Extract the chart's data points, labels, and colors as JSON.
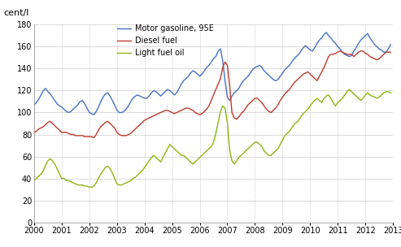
{
  "ylabel": "cent/l",
  "ylim": [
    0,
    180
  ],
  "yticks": [
    0,
    20,
    40,
    60,
    80,
    100,
    120,
    140,
    160,
    180
  ],
  "xtick_labels": [
    "2000",
    "2001",
    "2002",
    "2003",
    "2004",
    "2005",
    "2006",
    "2007",
    "2008",
    "2009",
    "2010",
    "2011",
    "2012",
    "2013"
  ],
  "legend": [
    "Motor gasoline, 95E",
    "Diesel fuel",
    "Light fuel oil"
  ],
  "colors": [
    "#4472C4",
    "#C0392B",
    "#8DB510"
  ],
  "motor_gasoline": [
    107,
    109,
    112,
    116,
    120,
    122,
    119,
    117,
    114,
    111,
    108,
    106,
    105,
    103,
    101,
    100,
    101,
    103,
    105,
    107,
    110,
    111,
    108,
    104,
    100,
    99,
    98,
    101,
    105,
    110,
    114,
    117,
    118,
    115,
    111,
    107,
    102,
    100,
    100,
    101,
    103,
    106,
    110,
    113,
    115,
    116,
    115,
    114,
    113,
    113,
    115,
    118,
    120,
    119,
    117,
    115,
    117,
    119,
    121,
    120,
    118,
    116,
    118,
    122,
    126,
    129,
    131,
    133,
    136,
    138,
    137,
    135,
    133,
    135,
    138,
    141,
    143,
    146,
    149,
    151,
    156,
    158,
    147,
    129,
    114,
    111,
    115,
    118,
    120,
    122,
    126,
    129,
    131,
    133,
    136,
    139,
    141,
    142,
    143,
    141,
    138,
    136,
    134,
    132,
    130,
    129,
    130,
    133,
    136,
    139,
    141,
    143,
    146,
    149,
    151,
    153,
    156,
    159,
    161,
    159,
    157,
    156,
    159,
    163,
    166,
    168,
    171,
    173,
    170,
    168,
    165,
    163,
    160,
    158,
    155,
    153,
    152,
    151,
    152,
    156,
    159,
    163,
    166,
    168,
    170,
    172,
    168,
    165,
    162,
    160,
    158,
    157,
    155,
    155,
    158,
    162
  ],
  "diesel_fuel": [
    82,
    83,
    85,
    86,
    87,
    89,
    91,
    92,
    90,
    88,
    86,
    84,
    82,
    82,
    82,
    81,
    80,
    80,
    79,
    79,
    79,
    79,
    78,
    78,
    78,
    78,
    77,
    80,
    84,
    87,
    89,
    91,
    92,
    90,
    88,
    86,
    82,
    80,
    79,
    79,
    79,
    80,
    81,
    83,
    85,
    87,
    89,
    91,
    93,
    94,
    95,
    96,
    97,
    98,
    99,
    100,
    101,
    102,
    102,
    101,
    100,
    99,
    100,
    101,
    102,
    103,
    104,
    104,
    103,
    102,
    100,
    99,
    98,
    99,
    101,
    103,
    106,
    111,
    116,
    121,
    126,
    131,
    141,
    146,
    143,
    125,
    100,
    95,
    94,
    96,
    99,
    101,
    104,
    107,
    109,
    111,
    113,
    113,
    111,
    109,
    106,
    103,
    101,
    100,
    102,
    104,
    107,
    111,
    114,
    117,
    119,
    121,
    124,
    127,
    129,
    131,
    133,
    135,
    136,
    137,
    135,
    133,
    131,
    129,
    133,
    137,
    141,
    146,
    151,
    153,
    153,
    154,
    155,
    156,
    155,
    154,
    153,
    153,
    153,
    151,
    153,
    155,
    156,
    156,
    154,
    153,
    151,
    150,
    149,
    148,
    149,
    151,
    153,
    155,
    155,
    155
  ],
  "light_fuel_oil": [
    38,
    40,
    42,
    44,
    47,
    52,
    56,
    58,
    56,
    53,
    49,
    44,
    40,
    40,
    38,
    38,
    37,
    36,
    35,
    34,
    34,
    34,
    33,
    33,
    32,
    32,
    33,
    36,
    40,
    44,
    47,
    50,
    51,
    49,
    45,
    40,
    35,
    34,
    34,
    35,
    36,
    37,
    38,
    40,
    41,
    43,
    45,
    47,
    50,
    53,
    56,
    59,
    61,
    59,
    57,
    55,
    59,
    63,
    67,
    71,
    69,
    67,
    65,
    63,
    61,
    61,
    59,
    57,
    55,
    53,
    55,
    57,
    59,
    61,
    63,
    65,
    67,
    69,
    73,
    81,
    91,
    101,
    106,
    104,
    91,
    66,
    56,
    53,
    56,
    59,
    61,
    63,
    65,
    67,
    69,
    71,
    73,
    73,
    71,
    69,
    65,
    63,
    61,
    61,
    63,
    65,
    67,
    71,
    75,
    79,
    81,
    83,
    86,
    89,
    91,
    93,
    96,
    99,
    101,
    103,
    106,
    109,
    111,
    113,
    111,
    109,
    113,
    115,
    116,
    113,
    109,
    106,
    109,
    111,
    113,
    116,
    119,
    121,
    119,
    117,
    115,
    113,
    111,
    113,
    116,
    118,
    116,
    115,
    114,
    113,
    114,
    116,
    118,
    119,
    119,
    118
  ]
}
